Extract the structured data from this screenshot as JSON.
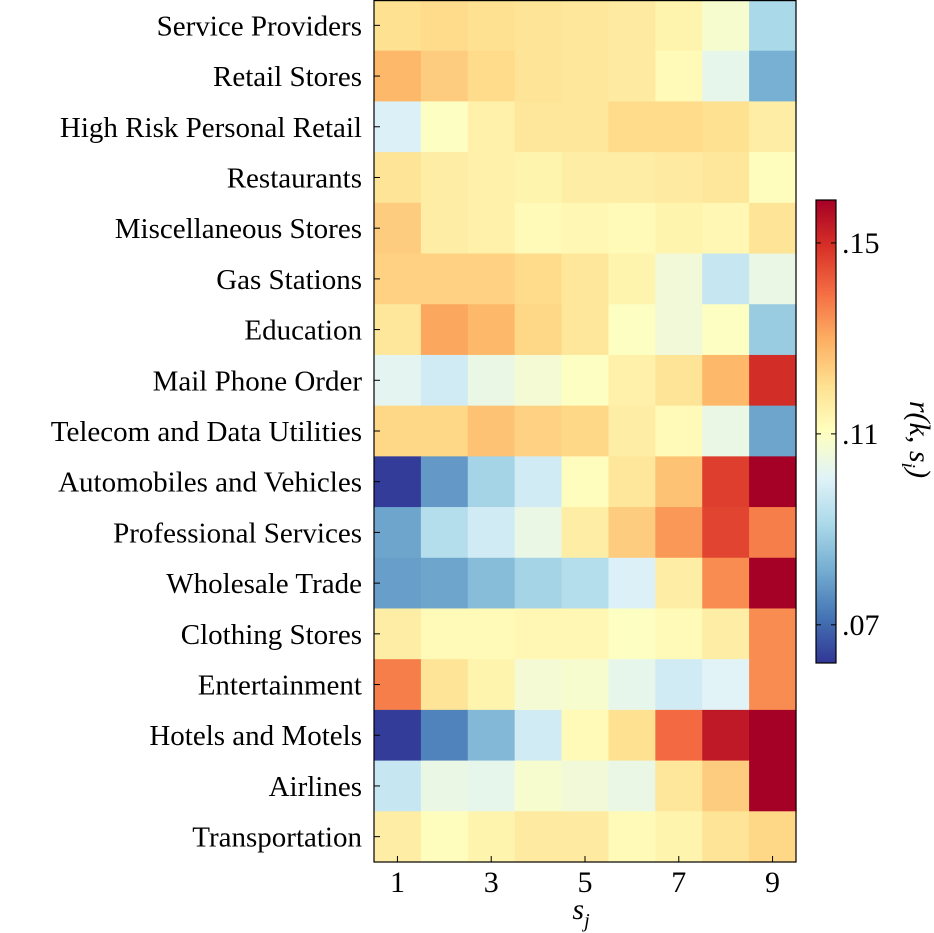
{
  "chart_data": {
    "type": "heatmap",
    "title": "",
    "xlabel": "s_j",
    "xlabel_display": {
      "base": "s",
      "sub": "j"
    },
    "colorbar_label": "r(k, s_i)",
    "colorbar_label_display": {
      "prefix": "r(k, ",
      "base": "s",
      "sub": "i",
      "suffix": ")"
    },
    "rows": [
      "Service Providers",
      "Retail Stores",
      "High Risk Personal Retail",
      "Restaurants",
      "Miscellaneous Stores",
      "Gas Stations",
      "Education",
      "Mail Phone Order",
      "Telecom and Data Utilities",
      "Automobiles and Vehicles",
      "Professional Services",
      "Wholesale Trade",
      "Clothing Stores",
      "Entertainment",
      "Hotels and Motels",
      "Airlines",
      "Transportation"
    ],
    "columns": [
      1,
      2,
      3,
      4,
      5,
      6,
      7,
      8,
      9
    ],
    "x_ticks": [
      "1",
      "3",
      "5",
      "7",
      "9"
    ],
    "x_tick_values": [
      1,
      3,
      5,
      7,
      9
    ],
    "colorbar_ticks": [
      ".07",
      ".11",
      ".15"
    ],
    "colorbar_tick_values": [
      0.07,
      0.11,
      0.15
    ],
    "vmin": 0.062,
    "vmax": 0.159,
    "colormap": [
      "#313695",
      "#4575b4",
      "#74add1",
      "#abd9e9",
      "#e0f3f8",
      "#ffffbf",
      "#fee090",
      "#fdae61",
      "#f46d43",
      "#d73027",
      "#a50026"
    ],
    "values": [
      [
        0.12,
        0.121,
        0.12,
        0.119,
        0.118,
        0.117,
        0.114,
        0.108,
        0.091
      ],
      [
        0.128,
        0.124,
        0.121,
        0.119,
        0.118,
        0.117,
        0.112,
        0.103,
        0.082
      ],
      [
        0.1,
        0.11,
        0.115,
        0.118,
        0.118,
        0.121,
        0.121,
        0.12,
        0.116
      ],
      [
        0.119,
        0.116,
        0.115,
        0.114,
        0.116,
        0.116,
        0.117,
        0.118,
        0.111
      ],
      [
        0.124,
        0.116,
        0.115,
        0.112,
        0.113,
        0.112,
        0.114,
        0.113,
        0.119
      ],
      [
        0.123,
        0.123,
        0.123,
        0.121,
        0.118,
        0.114,
        0.106,
        0.096,
        0.104
      ],
      [
        0.118,
        0.131,
        0.128,
        0.122,
        0.118,
        0.11,
        0.106,
        0.11,
        0.088
      ],
      [
        0.102,
        0.098,
        0.104,
        0.107,
        0.11,
        0.115,
        0.119,
        0.128,
        0.15
      ],
      [
        0.122,
        0.122,
        0.126,
        0.123,
        0.122,
        0.116,
        0.112,
        0.104,
        0.08
      ],
      [
        0.063,
        0.078,
        0.09,
        0.098,
        0.111,
        0.118,
        0.126,
        0.147,
        0.159
      ],
      [
        0.08,
        0.093,
        0.098,
        0.104,
        0.116,
        0.124,
        0.133,
        0.146,
        0.137
      ],
      [
        0.079,
        0.08,
        0.085,
        0.09,
        0.093,
        0.1,
        0.116,
        0.135,
        0.159
      ],
      [
        0.116,
        0.112,
        0.112,
        0.113,
        0.113,
        0.11,
        0.112,
        0.116,
        0.135
      ],
      [
        0.137,
        0.119,
        0.114,
        0.107,
        0.108,
        0.103,
        0.098,
        0.101,
        0.135
      ],
      [
        0.063,
        0.074,
        0.084,
        0.098,
        0.112,
        0.12,
        0.14,
        0.154,
        0.159
      ],
      [
        0.096,
        0.104,
        0.103,
        0.108,
        0.106,
        0.104,
        0.118,
        0.124,
        0.159
      ],
      [
        0.116,
        0.111,
        0.114,
        0.117,
        0.117,
        0.112,
        0.114,
        0.119,
        0.122
      ]
    ]
  }
}
